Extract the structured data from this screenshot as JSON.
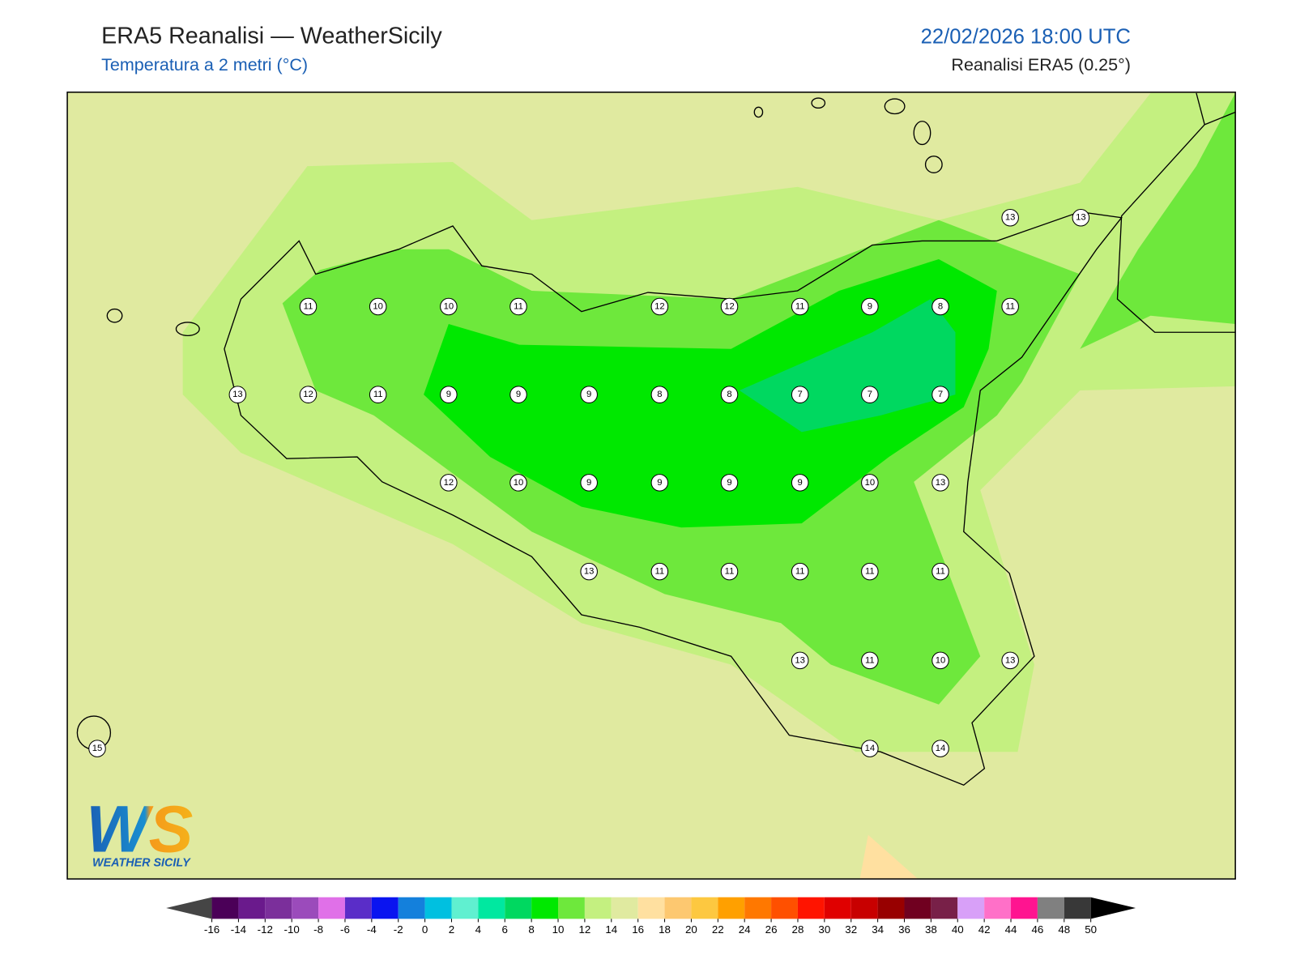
{
  "header": {
    "title": "ERA5 Reanalisi — WeatherSicily",
    "subtitle": "Temperatura a 2 metri (°C)",
    "datetime": "22/02/2026 18:00 UTC",
    "source": "Reanalisi ERA5 (0.25°)"
  },
  "map": {
    "point_values": [
      13,
      13,
      11,
      10,
      10,
      11,
      12,
      12,
      11,
      9,
      8,
      11,
      13,
      12,
      11,
      9,
      9,
      9,
      8,
      8,
      7,
      7,
      7,
      12,
      10,
      9,
      9,
      9,
      9,
      10,
      13,
      13,
      11,
      11,
      11,
      11,
      11,
      13,
      11,
      10,
      13,
      15,
      14,
      14
    ]
  },
  "colorbar": {
    "ticks": [
      -16,
      -14,
      -12,
      -10,
      -8,
      -6,
      -4,
      -2,
      0,
      2,
      4,
      6,
      8,
      10,
      12,
      14,
      16,
      18,
      20,
      22,
      24,
      26,
      28,
      30,
      32,
      34,
      36,
      38,
      40,
      42,
      44,
      46,
      48,
      50
    ],
    "colors": [
      "#4b0058",
      "#6a1a8c",
      "#7b2f9b",
      "#9b4bbb",
      "#e070e8",
      "#5a2dc8",
      "#0a14f0",
      "#1480dc",
      "#00c0e0",
      "#60f0d0",
      "#00e8a0",
      "#00d860",
      "#00e800",
      "#6ee83c",
      "#c4f080",
      "#e0eaa0",
      "#ffe0a0",
      "#fdc870",
      "#fdc840",
      "#ffa000",
      "#ff7800",
      "#ff5000",
      "#ff1400",
      "#e00000",
      "#c80000",
      "#980000",
      "#700020",
      "#782048",
      "#d8a0f8",
      "#ff70c8",
      "#ff1490",
      "#808080",
      "#383838"
    ]
  },
  "logo": {
    "mark": "WS",
    "text": "WEATHER SICILY"
  }
}
